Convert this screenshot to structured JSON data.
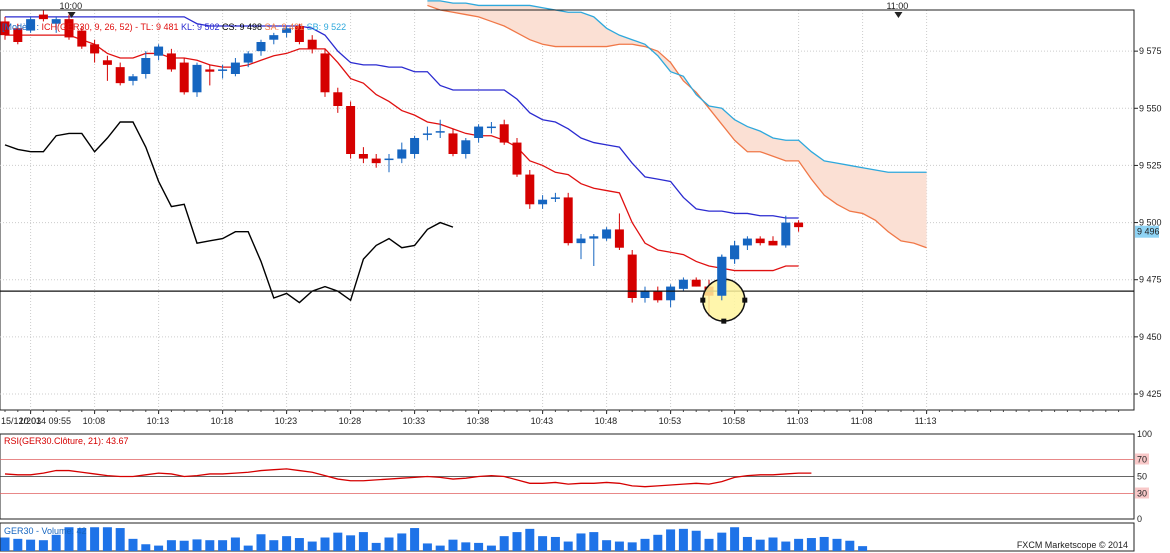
{
  "chart_data": [
    {
      "type": "candlestick",
      "instrument": "GER30",
      "legend": {
        "model_label": "[Modèle : ",
        "ichimoku_label": "ICH(GER30, 9, 26, 52)",
        "tl_label": "TL: 9 481",
        "kl_label": "KL: 9 502",
        "cs_label": "CS: 9 498",
        "sa_label": "SA: 9 491",
        "sb_label": "SB: 9 522"
      },
      "date_label": "15/12/2014 09:55",
      "x_tick_labels": [
        "10:03",
        "10:08",
        "10:13",
        "10:18",
        "10:23",
        "10:28",
        "10:33",
        "10:38",
        "10:43",
        "10:48",
        "10:53",
        "10:58",
        "11:03",
        "11:08",
        "11:13"
      ],
      "top_time_labels": [
        "10:00",
        "11:00"
      ],
      "y_tick_labels": [
        "9 575",
        "9 550",
        "9 525",
        "9 500",
        "9 475",
        "9 450",
        "9 425"
      ],
      "ylim": [
        9418,
        9593
      ],
      "last_price_label": "9 496",
      "horizontal_line": 9470,
      "highlight_candle_index": 56,
      "colors": {
        "up": "#1565c0",
        "down": "#d50000",
        "tenkan": "#e01010",
        "kijun": "#2b2bd0",
        "chikou": "#000000",
        "senkou_a": "#f07848",
        "senkou_b": "#2ea8dc",
        "cloud": "#fbe0d4",
        "highlight": "#fff59d"
      },
      "candles": [
        {
          "o": 9588,
          "h": 9590,
          "l": 9580,
          "c": 9582
        },
        {
          "o": 9585,
          "h": 9587,
          "l": 9578,
          "c": 9579
        },
        {
          "o": 9584,
          "h": 9590,
          "l": 9583,
          "c": 9589
        },
        {
          "o": 9591,
          "h": 9593,
          "l": 9588,
          "c": 9589
        },
        {
          "o": 9587,
          "h": 9590,
          "l": 9583,
          "c": 9589
        },
        {
          "o": 9589,
          "h": 9591,
          "l": 9580,
          "c": 9581
        },
        {
          "o": 9584,
          "h": 9586,
          "l": 9576,
          "c": 9577
        },
        {
          "o": 9578,
          "h": 9580,
          "l": 9570,
          "c": 9574
        },
        {
          "o": 9571,
          "h": 9573,
          "l": 9562,
          "c": 9569
        },
        {
          "o": 9568,
          "h": 9570,
          "l": 9560,
          "c": 9561
        },
        {
          "o": 9562,
          "h": 9565,
          "l": 9560,
          "c": 9564
        },
        {
          "o": 9565,
          "h": 9575,
          "l": 9563,
          "c": 9572
        },
        {
          "o": 9573,
          "h": 9578,
          "l": 9571,
          "c": 9577
        },
        {
          "o": 9574,
          "h": 9576,
          "l": 9566,
          "c": 9567
        },
        {
          "o": 9570,
          "h": 9572,
          "l": 9556,
          "c": 9557
        },
        {
          "o": 9557,
          "h": 9570,
          "l": 9555,
          "c": 9569
        },
        {
          "o": 9567,
          "h": 9569,
          "l": 9560,
          "c": 9566
        },
        {
          "o": 9567,
          "h": 9569,
          "l": 9563,
          "c": 9567
        },
        {
          "o": 9565,
          "h": 9572,
          "l": 9564,
          "c": 9570
        },
        {
          "o": 9570,
          "h": 9575,
          "l": 9568,
          "c": 9574
        },
        {
          "o": 9575,
          "h": 9580,
          "l": 9573,
          "c": 9579
        },
        {
          "o": 9580,
          "h": 9583,
          "l": 9578,
          "c": 9582
        },
        {
          "o": 9583,
          "h": 9586,
          "l": 9581,
          "c": 9585
        },
        {
          "o": 9586,
          "h": 9587,
          "l": 9578,
          "c": 9579
        },
        {
          "o": 9580,
          "h": 9582,
          "l": 9574,
          "c": 9576
        },
        {
          "o": 9574,
          "h": 9576,
          "l": 9555,
          "c": 9557
        },
        {
          "o": 9557,
          "h": 9559,
          "l": 9548,
          "c": 9551
        },
        {
          "o": 9551,
          "h": 9553,
          "l": 9528,
          "c": 9530
        },
        {
          "o": 9530,
          "h": 9533,
          "l": 9526,
          "c": 9528
        },
        {
          "o": 9528,
          "h": 9530,
          "l": 9524,
          "c": 9526
        },
        {
          "o": 9528,
          "h": 9530,
          "l": 9522,
          "c": 9528
        },
        {
          "o": 9528,
          "h": 9535,
          "l": 9526,
          "c": 9532
        },
        {
          "o": 9530,
          "h": 9538,
          "l": 9528,
          "c": 9537
        },
        {
          "o": 9539,
          "h": 9542,
          "l": 9536,
          "c": 9539
        },
        {
          "o": 9540,
          "h": 9545,
          "l": 9537,
          "c": 9540
        },
        {
          "o": 9539,
          "h": 9541,
          "l": 9529,
          "c": 9530
        },
        {
          "o": 9530,
          "h": 9537,
          "l": 9528,
          "c": 9536
        },
        {
          "o": 9537,
          "h": 9543,
          "l": 9535,
          "c": 9542
        },
        {
          "o": 9542,
          "h": 9544,
          "l": 9539,
          "c": 9542
        },
        {
          "o": 9543,
          "h": 9545,
          "l": 9534,
          "c": 9535
        },
        {
          "o": 9535,
          "h": 9537,
          "l": 9520,
          "c": 9521
        },
        {
          "o": 9521,
          "h": 9523,
          "l": 9506,
          "c": 9508
        },
        {
          "o": 9508,
          "h": 9512,
          "l": 9506,
          "c": 9510
        },
        {
          "o": 9511,
          "h": 9513,
          "l": 9509,
          "c": 9511
        },
        {
          "o": 9511,
          "h": 9513,
          "l": 9490,
          "c": 9491
        },
        {
          "o": 9491,
          "h": 9495,
          "l": 9484,
          "c": 9493
        },
        {
          "o": 9493,
          "h": 9495,
          "l": 9481,
          "c": 9494
        },
        {
          "o": 9493,
          "h": 9498,
          "l": 9492,
          "c": 9497
        },
        {
          "o": 9497,
          "h": 9504,
          "l": 9488,
          "c": 9489
        },
        {
          "o": 9486,
          "h": 9488,
          "l": 9465,
          "c": 9467
        },
        {
          "o": 9467,
          "h": 9472,
          "l": 9465,
          "c": 9470
        },
        {
          "o": 9470,
          "h": 9472,
          "l": 9465,
          "c": 9466
        },
        {
          "o": 9466,
          "h": 9473,
          "l": 9463,
          "c": 9472
        },
        {
          "o": 9471,
          "h": 9476,
          "l": 9470,
          "c": 9475
        },
        {
          "o": 9475,
          "h": 9476,
          "l": 9472,
          "c": 9472
        },
        {
          "o": 9472,
          "h": 9475,
          "l": 9459,
          "c": 9468
        },
        {
          "o": 9468,
          "h": 9486,
          "l": 9466,
          "c": 9485
        },
        {
          "o": 9484,
          "h": 9492,
          "l": 9482,
          "c": 9490
        },
        {
          "o": 9490,
          "h": 9494,
          "l": 9488,
          "c": 9493
        },
        {
          "o": 9493,
          "h": 9494,
          "l": 9490,
          "c": 9491
        },
        {
          "o": 9492,
          "h": 9494,
          "l": 9490,
          "c": 9490
        },
        {
          "o": 9490,
          "h": 9503,
          "l": 9489,
          "c": 9500
        },
        {
          "o": 9500,
          "h": 9501,
          "l": 9496,
          "c": 9498
        }
      ],
      "tenkan": [
        9582,
        9582,
        9582,
        9582,
        9582,
        9582,
        9580,
        9578,
        9574,
        9572,
        9572,
        9574,
        9574,
        9572,
        9572,
        9571,
        9569,
        9568,
        9568,
        9569,
        9571,
        9573,
        9574,
        9576,
        9576,
        9576,
        9570,
        9563,
        9561,
        9556,
        9553,
        9549,
        9547,
        9544,
        9543,
        9541,
        9539,
        9538,
        9538,
        9536,
        9533,
        9527,
        9525,
        9522,
        9521,
        9517,
        9515,
        9514,
        9513,
        9500,
        9491,
        9488,
        9487,
        9486,
        9483,
        9481,
        9480,
        9479,
        9479,
        9479,
        9479,
        9481,
        9481
      ],
      "kijun": [
        9590,
        9590,
        9590,
        9590,
        9590,
        9590,
        9590,
        9590,
        9590,
        9590,
        9590,
        9590,
        9590,
        9590,
        9590,
        9587,
        9586,
        9586,
        9586,
        9586,
        9586,
        9586,
        9586,
        9586,
        9585,
        9582,
        9575,
        9570,
        9569,
        9569,
        9568,
        9568,
        9566,
        9566,
        9560,
        9558,
        9558,
        9558,
        9558,
        9558,
        9554,
        9548,
        9545,
        9544,
        9541,
        9537,
        9535,
        9534,
        9533,
        9526,
        9520,
        9519,
        9518,
        9511,
        9506,
        9505,
        9505,
        9504,
        9504,
        9503,
        9503,
        9502,
        9502
      ],
      "chikou": [
        9534,
        9532,
        9531,
        9531,
        9538,
        9539,
        9539,
        9531,
        9537,
        9544,
        9544,
        9533,
        9518,
        9507,
        9508,
        9491,
        9492,
        9493,
        9496,
        9496,
        9483,
        9467,
        9469,
        9465,
        9470,
        9472,
        9470,
        9466,
        9484,
        9490,
        9493,
        9489,
        9490,
        9497,
        9500,
        9498
      ],
      "cloud_start_index": 33,
      "senkou_a": [
        9595,
        9593,
        9592,
        9591,
        9590,
        9588,
        9586,
        9583,
        9580,
        9578,
        9577,
        9577,
        9577,
        9577,
        9577,
        9578,
        9578,
        9577,
        9575,
        9570,
        9562,
        9557,
        9550,
        9543,
        9536,
        9531,
        9531,
        9529,
        9527,
        9527,
        9519,
        9512,
        9508,
        9505,
        9504,
        9501,
        9496,
        9492,
        9491,
        9489
      ],
      "senkou_b": [
        9597,
        9597,
        9596,
        9596,
        9595,
        9595,
        9595,
        9595,
        9595,
        9594,
        9593,
        9592,
        9592,
        9590,
        9585,
        9582,
        9580,
        9578,
        9573,
        9566,
        9564,
        9556,
        9551,
        9550,
        9545,
        9542,
        9540,
        9537,
        9536,
        9536,
        9531,
        9527,
        9526,
        9525,
        9524,
        9523,
        9522,
        9522,
        9522,
        9522
      ]
    },
    {
      "type": "line",
      "title": "RSI(GER30.Clôture, 21): 43.67",
      "y_tick_labels": [
        "100",
        "70",
        "50",
        "30",
        "0"
      ],
      "ylim": [
        0,
        100
      ],
      "levels": [
        70,
        50,
        30
      ],
      "values": [
        53,
        52,
        52,
        54,
        57,
        57,
        55,
        53,
        51,
        50,
        50,
        52,
        54,
        53,
        50,
        51,
        53,
        53,
        54,
        55,
        57,
        58,
        59,
        57,
        55,
        51,
        47,
        45,
        45,
        46,
        47,
        48,
        49,
        50,
        49,
        47,
        48,
        50,
        51,
        50,
        46,
        42,
        42,
        43,
        41,
        42,
        42,
        43,
        42,
        39,
        38,
        39,
        40,
        41,
        42,
        41,
        44,
        49,
        51,
        52,
        52,
        53,
        54,
        54
      ]
    },
    {
      "type": "bar",
      "title": "GER30 - Volume: 42",
      "ylim": [
        0,
        100
      ],
      "values": [
        50,
        45,
        42,
        40,
        60,
        88,
        85,
        88,
        88,
        85,
        45,
        25,
        20,
        40,
        38,
        43,
        40,
        40,
        50,
        20,
        62,
        40,
        55,
        48,
        35,
        50,
        68,
        58,
        70,
        30,
        50,
        65,
        85,
        28,
        20,
        42,
        32,
        30,
        20,
        55,
        70,
        82,
        55,
        52,
        35,
        65,
        70,
        40,
        35,
        32,
        45,
        60,
        80,
        82,
        75,
        45,
        68,
        88,
        52,
        42,
        50,
        35,
        45,
        48,
        52,
        45,
        38,
        18
      ]
    }
  ],
  "footer": {
    "credit": "FXCM Marketscope © 2014"
  }
}
